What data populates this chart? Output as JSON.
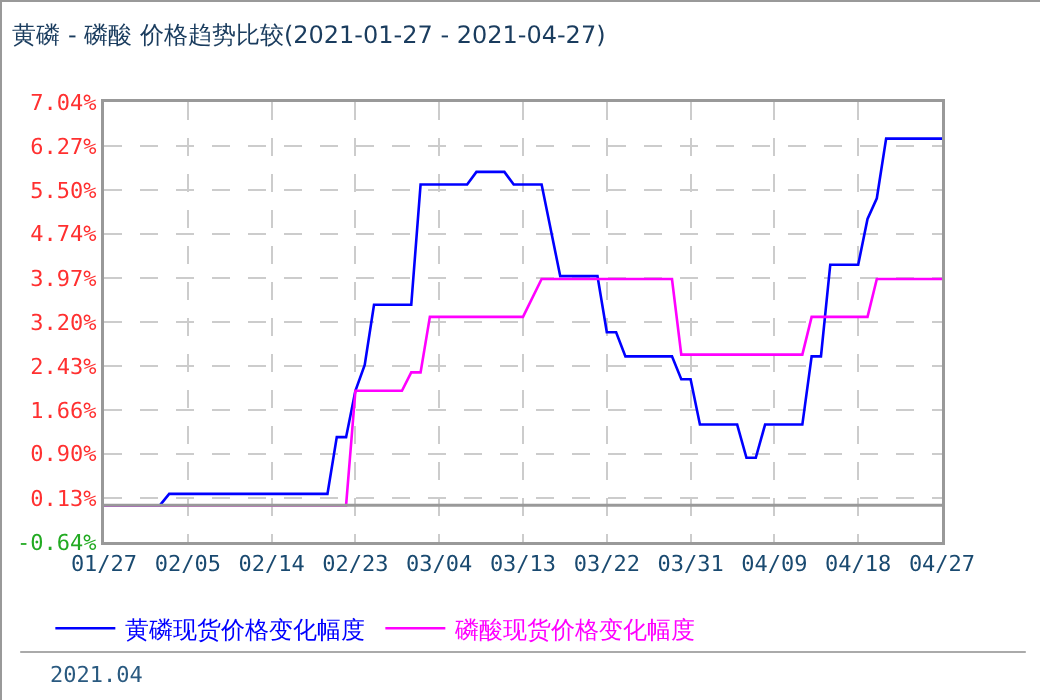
{
  "chart_data": {
    "type": "line",
    "title": "黄磷 - 磷酸 价格趋势比较(2021-01-27 - 2021-04-27)",
    "series": [
      {
        "name": "黄磷现货价格变化幅度",
        "color": "#0000ff",
        "x": [
          "2021-01-27",
          "2021-02-02",
          "2021-02-03",
          "2021-02-20",
          "2021-02-21",
          "2021-02-22",
          "2021-02-23",
          "2021-02-24",
          "2021-02-25",
          "2021-03-01",
          "2021-03-02",
          "2021-03-07",
          "2021-03-08",
          "2021-03-11",
          "2021-03-12",
          "2021-03-15",
          "2021-03-17",
          "2021-03-21",
          "2021-03-22",
          "2021-03-23",
          "2021-03-24",
          "2021-03-29",
          "2021-03-30",
          "2021-03-31",
          "2021-04-01",
          "2021-04-05",
          "2021-04-06",
          "2021-04-07",
          "2021-04-08",
          "2021-04-12",
          "2021-04-13",
          "2021-04-14",
          "2021-04-15",
          "2021-04-18",
          "2021-04-19",
          "2021-04-20",
          "2021-04-21",
          "2021-04-27"
        ],
        "values": [
          0,
          0,
          0.2,
          0.2,
          1.19,
          1.19,
          2.0,
          2.45,
          3.5,
          3.5,
          5.6,
          5.6,
          5.82,
          5.82,
          5.6,
          5.6,
          4.0,
          4.0,
          3.02,
          3.02,
          2.6,
          2.6,
          2.2,
          2.2,
          1.41,
          1.41,
          0.83,
          0.83,
          1.41,
          1.41,
          2.6,
          2.6,
          4.2,
          4.2,
          5.0,
          5.36,
          6.4,
          6.4
        ]
      },
      {
        "name": "磷酸现货价格变化幅度",
        "color": "#ff00ff",
        "x": [
          "2021-01-27",
          "2021-02-22",
          "2021-02-23",
          "2021-02-28",
          "2021-03-01",
          "2021-03-02",
          "2021-03-03",
          "2021-03-13",
          "2021-03-15",
          "2021-03-29",
          "2021-03-30",
          "2021-04-12",
          "2021-04-13",
          "2021-04-19",
          "2021-04-20",
          "2021-04-27"
        ],
        "values": [
          0,
          0,
          2.0,
          2.0,
          2.32,
          2.32,
          3.29,
          3.29,
          3.95,
          3.95,
          2.63,
          2.63,
          3.29,
          3.29,
          3.95,
          3.95
        ]
      }
    ],
    "xlim": [
      "2021-01-27",
      "2021-04-27"
    ],
    "xticks": [
      {
        "value": "2021-01-27",
        "label": "01/27"
      },
      {
        "value": "2021-02-05",
        "label": "02/05"
      },
      {
        "value": "2021-02-14",
        "label": "02/14"
      },
      {
        "value": "2021-02-23",
        "label": "02/23"
      },
      {
        "value": "2021-03-04",
        "label": "03/04"
      },
      {
        "value": "2021-03-13",
        "label": "03/13"
      },
      {
        "value": "2021-03-22",
        "label": "03/22"
      },
      {
        "value": "2021-03-31",
        "label": "03/31"
      },
      {
        "value": "2021-04-09",
        "label": "04/09"
      },
      {
        "value": "2021-04-18",
        "label": "04/18"
      },
      {
        "value": "2021-04-27",
        "label": "04/27"
      }
    ],
    "ylim": [
      -0.64,
      7.04
    ],
    "yticks": [
      {
        "value": -0.64,
        "label": "-0.64%"
      },
      {
        "value": 0.13,
        "label": "0.13%"
      },
      {
        "value": 0.9,
        "label": "0.90%"
      },
      {
        "value": 1.66,
        "label": "1.66%"
      },
      {
        "value": 2.43,
        "label": "2.43%"
      },
      {
        "value": 3.2,
        "label": "3.20%"
      },
      {
        "value": 3.97,
        "label": "3.97%"
      },
      {
        "value": 4.74,
        "label": "4.74%"
      },
      {
        "value": 5.5,
        "label": "5.50%"
      },
      {
        "value": 6.27,
        "label": "6.27%"
      },
      {
        "value": 7.04,
        "label": "7.04%"
      }
    ],
    "ref_lines": [
      {
        "axis": "y",
        "value": 0,
        "color": "#999999"
      }
    ],
    "grid": true,
    "legend": "bottom",
    "line_style": "solid",
    "marker": "none",
    "annotations": [
      "2021.04"
    ]
  }
}
